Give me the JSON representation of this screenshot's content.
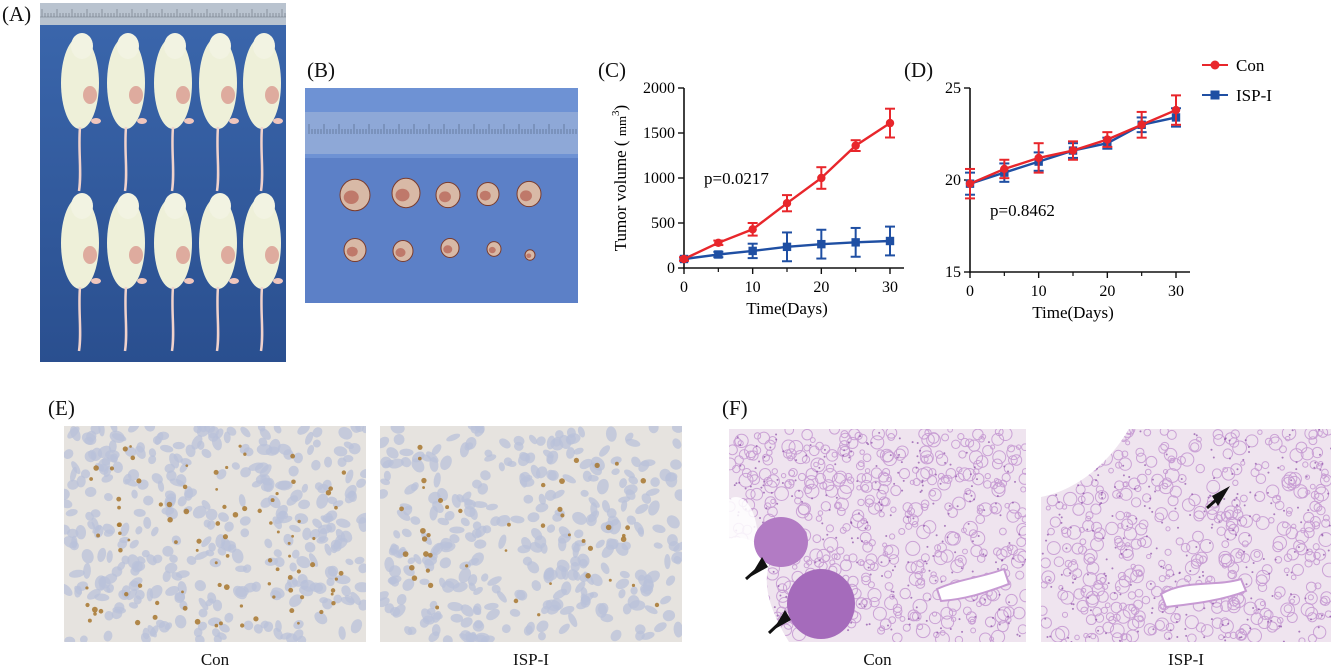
{
  "panels": {
    "a": "(A)",
    "b": "(B)",
    "c": "(C)",
    "d": "(D)",
    "e": "(E)",
    "f": "(F)"
  },
  "captions": {
    "e_left": "Con",
    "e_right": "ISP-I",
    "f_left": "Con",
    "f_right": "ISP-I"
  },
  "colors": {
    "con": "#e8262b",
    "isp": "#1f4fa3",
    "mouse_bg": "#2f5a9e",
    "tumor_bg": "#5a7fc6"
  },
  "chart_data": [
    {
      "type": "line",
      "panel": "(C)",
      "title": "",
      "xlabel": "Time(Days)",
      "ylabel": "Tumor volume ( mm³)",
      "ylabel_main": "Tumor volume (",
      "ylabel_unit": "mm",
      "ylabel_sup": "3",
      "ylabel_close": ")",
      "xlim": [
        0,
        30
      ],
      "ylim": [
        0,
        2000
      ],
      "xticks": [
        0,
        10,
        20,
        30
      ],
      "yticks": [
        0,
        500,
        1000,
        1500,
        2000
      ],
      "annotation": "p=0.0217",
      "series": [
        {
          "name": "Con",
          "color": "#e8262b",
          "marker": "circle",
          "x": [
            0,
            5,
            10,
            15,
            20,
            25,
            30
          ],
          "y": [
            100,
            280,
            430,
            720,
            1000,
            1360,
            1610
          ],
          "err": [
            20,
            25,
            70,
            90,
            120,
            60,
            160
          ]
        },
        {
          "name": "ISP-I",
          "color": "#1f4fa3",
          "marker": "square",
          "x": [
            0,
            5,
            10,
            15,
            20,
            25,
            30
          ],
          "y": [
            100,
            150,
            190,
            235,
            265,
            285,
            300
          ],
          "err": [
            15,
            30,
            80,
            160,
            160,
            160,
            160
          ]
        }
      ]
    },
    {
      "type": "line",
      "panel": "(D)",
      "title": "",
      "xlabel": "Time(Days)",
      "ylabel": "",
      "xlim": [
        0,
        30
      ],
      "ylim": [
        15,
        25
      ],
      "xticks": [
        0,
        10,
        20,
        30
      ],
      "yticks": [
        15,
        20,
        25
      ],
      "annotation": "p=0.8462",
      "series": [
        {
          "name": "Con",
          "color": "#e8262b",
          "marker": "circle",
          "x": [
            0,
            5,
            10,
            15,
            20,
            25,
            30
          ],
          "y": [
            19.8,
            20.6,
            21.2,
            21.6,
            22.2,
            23.0,
            23.8
          ],
          "err": [
            0.8,
            0.5,
            0.8,
            0.5,
            0.4,
            0.7,
            0.8
          ]
        },
        {
          "name": "ISP-I",
          "color": "#1f4fa3",
          "marker": "square",
          "x": [
            0,
            5,
            10,
            15,
            20,
            25,
            30
          ],
          "y": [
            19.8,
            20.4,
            21.0,
            21.6,
            22.0,
            23.0,
            23.4
          ],
          "err": [
            0.6,
            0.5,
            0.5,
            0.4,
            0.3,
            0.4,
            0.5
          ]
        }
      ]
    }
  ],
  "legend": [
    {
      "label": "Con",
      "color": "#e8262b",
      "marker": "circle"
    },
    {
      "label": "ISP-I",
      "color": "#1f4fa3",
      "marker": "square"
    }
  ]
}
